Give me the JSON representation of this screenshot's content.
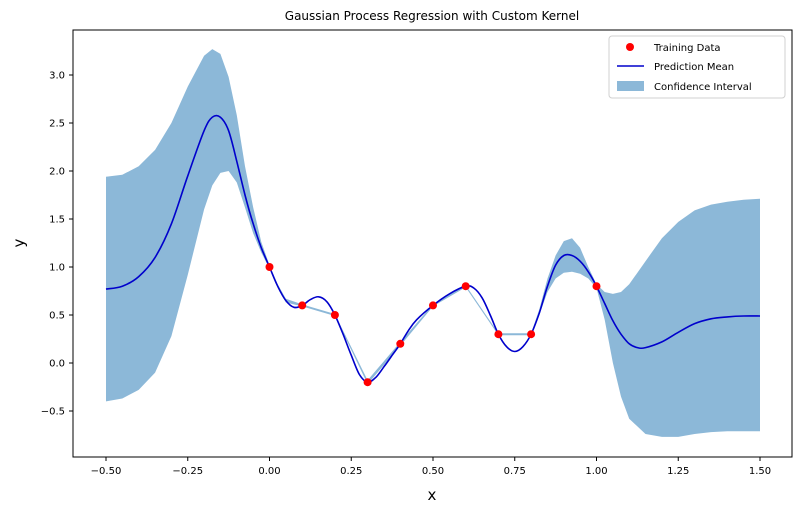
{
  "chart_data": {
    "type": "line",
    "title": "Gaussian Process Regression with Custom Kernel",
    "xlabel": "x",
    "ylabel": "y",
    "xlim": [
      -0.6,
      1.6
    ],
    "ylim": [
      -0.95,
      3.45
    ],
    "grid": false,
    "legend_position": "upper right",
    "x_ticks": [
      -0.5,
      -0.25,
      0.0,
      0.25,
      0.5,
      0.75,
      1.0,
      1.25,
      1.5
    ],
    "x_tick_labels": [
      "−0.50",
      "−0.25",
      "0.00",
      "0.25",
      "0.50",
      "0.75",
      "1.00",
      "1.25",
      "1.50"
    ],
    "y_ticks": [
      -0.5,
      0.0,
      0.5,
      1.0,
      1.5,
      2.0,
      2.5,
      3.0
    ],
    "y_tick_labels": [
      "−0.5",
      "0.0",
      "0.5",
      "1.0",
      "1.5",
      "2.0",
      "2.5",
      "3.0"
    ],
    "colors": {
      "training": "#ff0000",
      "mean": "#0000cc",
      "confidence": "#8cb8d8"
    },
    "legend": [
      {
        "label": "Training Data",
        "kind": "marker"
      },
      {
        "label": "Prediction Mean",
        "kind": "line"
      },
      {
        "label": "Confidence Interval",
        "kind": "patch"
      }
    ],
    "series": [
      {
        "name": "Training Data",
        "kind": "scatter",
        "x": [
          0.0,
          0.1,
          0.2,
          0.3,
          0.4,
          0.5,
          0.6,
          0.7,
          0.8,
          1.0
        ],
        "y": [
          1.0,
          0.6,
          0.5,
          -0.2,
          0.2,
          0.6,
          0.8,
          0.3,
          0.3,
          0.8
        ]
      },
      {
        "name": "Prediction Mean",
        "kind": "line",
        "x": [
          -0.5,
          -0.45,
          -0.4,
          -0.35,
          -0.3,
          -0.25,
          -0.2,
          -0.175,
          -0.15,
          -0.125,
          -0.1,
          -0.075,
          -0.05,
          -0.025,
          0.0,
          0.025,
          0.05,
          0.075,
          0.1,
          0.125,
          0.15,
          0.175,
          0.2,
          0.225,
          0.25,
          0.275,
          0.3,
          0.325,
          0.35,
          0.375,
          0.4,
          0.425,
          0.45,
          0.5,
          0.55,
          0.6,
          0.625,
          0.65,
          0.675,
          0.7,
          0.725,
          0.75,
          0.775,
          0.8,
          0.825,
          0.85,
          0.875,
          0.9,
          0.925,
          0.95,
          0.975,
          1.0,
          1.025,
          1.05,
          1.075,
          1.1,
          1.125,
          1.15,
          1.2,
          1.25,
          1.3,
          1.35,
          1.4,
          1.45,
          1.5
        ],
        "y": [
          0.77,
          0.8,
          0.9,
          1.1,
          1.45,
          1.95,
          2.42,
          2.56,
          2.56,
          2.42,
          2.1,
          1.75,
          1.45,
          1.2,
          1.0,
          0.8,
          0.65,
          0.58,
          0.6,
          0.66,
          0.69,
          0.64,
          0.5,
          0.3,
          0.08,
          -0.12,
          -0.2,
          -0.15,
          -0.04,
          0.08,
          0.2,
          0.34,
          0.45,
          0.6,
          0.72,
          0.8,
          0.78,
          0.68,
          0.5,
          0.3,
          0.17,
          0.12,
          0.17,
          0.3,
          0.52,
          0.8,
          1.02,
          1.12,
          1.12,
          1.06,
          0.95,
          0.8,
          0.62,
          0.44,
          0.3,
          0.2,
          0.16,
          0.16,
          0.22,
          0.32,
          0.41,
          0.46,
          0.48,
          0.49,
          0.49
        ]
      },
      {
        "name": "Confidence Interval",
        "kind": "band",
        "x": [
          -0.5,
          -0.45,
          -0.4,
          -0.35,
          -0.3,
          -0.25,
          -0.2,
          -0.175,
          -0.15,
          -0.125,
          -0.1,
          -0.075,
          -0.05,
          -0.025,
          0.0,
          0.025,
          0.05,
          0.1,
          0.2,
          0.3,
          0.4,
          0.5,
          0.6,
          0.7,
          0.8,
          0.825,
          0.85,
          0.875,
          0.9,
          0.925,
          0.95,
          0.975,
          1.0,
          1.025,
          1.05,
          1.075,
          1.1,
          1.15,
          1.2,
          1.25,
          1.3,
          1.35,
          1.4,
          1.45,
          1.5
        ],
        "upper": [
          1.94,
          1.96,
          2.05,
          2.22,
          2.5,
          2.88,
          3.2,
          3.27,
          3.22,
          2.98,
          2.58,
          2.05,
          1.62,
          1.26,
          1.02,
          0.82,
          0.67,
          0.61,
          0.51,
          -0.18,
          0.22,
          0.61,
          0.81,
          0.31,
          0.31,
          0.56,
          0.88,
          1.12,
          1.27,
          1.3,
          1.2,
          1.0,
          0.82,
          0.74,
          0.72,
          0.74,
          0.82,
          1.06,
          1.3,
          1.47,
          1.59,
          1.65,
          1.68,
          1.7,
          1.71
        ],
        "lower": [
          -0.4,
          -0.37,
          -0.28,
          -0.1,
          0.28,
          0.92,
          1.6,
          1.85,
          1.98,
          2.0,
          1.88,
          1.62,
          1.35,
          1.15,
          0.98,
          0.78,
          0.63,
          0.59,
          0.49,
          -0.22,
          0.18,
          0.59,
          0.79,
          0.29,
          0.29,
          0.5,
          0.74,
          0.88,
          0.94,
          0.95,
          0.93,
          0.88,
          0.78,
          0.45,
          0.0,
          -0.35,
          -0.58,
          -0.74,
          -0.77,
          -0.77,
          -0.74,
          -0.72,
          -0.71,
          -0.71,
          -0.71
        ]
      }
    ]
  }
}
